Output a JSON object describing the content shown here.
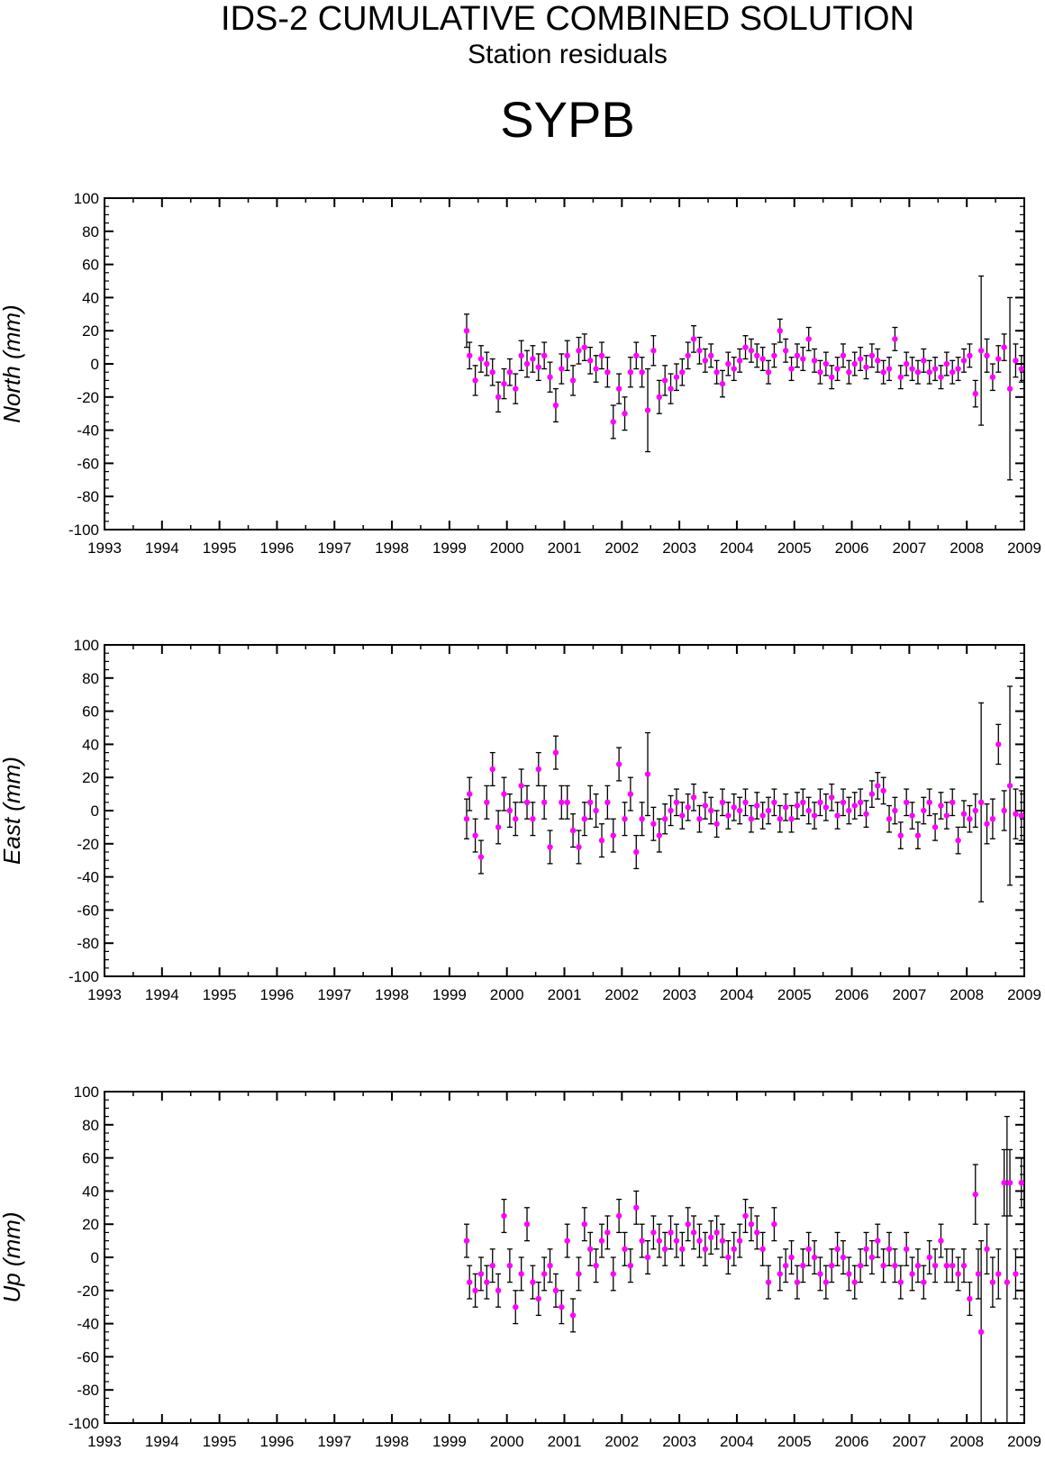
{
  "header": {
    "title": "IDS-2 CUMULATIVE COMBINED SOLUTION",
    "subtitle": "Station residuals",
    "station": "SYPB"
  },
  "colors": {
    "marker": "#ff00ff",
    "errorbar": "#000000",
    "axis": "#000000"
  },
  "chart_data": [
    {
      "type": "scatter",
      "ylabel": "North (mm)",
      "xlim": [
        1993,
        2009
      ],
      "ylim": [
        -100,
        100
      ],
      "xticks": [
        "1993",
        "1994",
        "1995",
        "1996",
        "1997",
        "1998",
        "1999",
        "2000",
        "2001",
        "2002",
        "2003",
        "2004",
        "2005",
        "2006",
        "2007",
        "2008",
        "2009"
      ],
      "yticks": [
        "100",
        "80",
        "60",
        "40",
        "20",
        "0",
        "-20",
        "-40",
        "-60",
        "-80",
        "-100"
      ],
      "grid": false,
      "series": [
        {
          "x": [
            1999.3,
            1999.35,
            1999.45,
            1999.55,
            1999.65,
            1999.75,
            1999.85,
            1999.95,
            2000.05,
            2000.15,
            2000.25,
            2000.35,
            2000.45,
            2000.55,
            2000.65,
            2000.75,
            2000.85,
            2000.95,
            2001.05,
            2001.15,
            2001.25,
            2001.35,
            2001.45,
            2001.55,
            2001.65,
            2001.75,
            2001.85,
            2001.95,
            2002.05,
            2002.15,
            2002.25,
            2002.35,
            2002.45,
            2002.55,
            2002.65,
            2002.75,
            2002.85,
            2002.95,
            2003.05,
            2003.15,
            2003.25,
            2003.35,
            2003.45,
            2003.55,
            2003.65,
            2003.75,
            2003.85,
            2003.95,
            2004.05,
            2004.15,
            2004.25,
            2004.35,
            2004.45,
            2004.55,
            2004.65,
            2004.75,
            2004.85,
            2004.95,
            2005.05,
            2005.15,
            2005.25,
            2005.35,
            2005.45,
            2005.55,
            2005.65,
            2005.75,
            2005.85,
            2005.95,
            2006.05,
            2006.15,
            2006.25,
            2006.35,
            2006.45,
            2006.55,
            2006.65,
            2006.75,
            2006.85,
            2006.95,
            2007.05,
            2007.15,
            2007.25,
            2007.35,
            2007.45,
            2007.55,
            2007.65,
            2007.75,
            2007.85,
            2007.95,
            2008.05,
            2008.15,
            2008.25,
            2008.35,
            2008.45,
            2008.55,
            2008.65,
            2008.75,
            2008.85,
            2008.95
          ],
          "y": [
            20,
            5,
            -10,
            3,
            0,
            -5,
            -20,
            -12,
            -5,
            -15,
            5,
            0,
            3,
            -2,
            5,
            -8,
            -25,
            -3,
            5,
            -10,
            8,
            10,
            2,
            -3,
            5,
            -5,
            -35,
            -15,
            -30,
            -5,
            5,
            -5,
            -28,
            8,
            -20,
            -10,
            -15,
            -8,
            -5,
            5,
            15,
            8,
            2,
            5,
            -5,
            -12,
            0,
            -3,
            2,
            10,
            8,
            5,
            3,
            -5,
            5,
            20,
            8,
            -3,
            5,
            3,
            15,
            2,
            -5,
            0,
            -8,
            -3,
            5,
            -5,
            0,
            3,
            -2,
            5,
            2,
            -5,
            -3,
            15,
            -8,
            0,
            -3,
            -5,
            2,
            -5,
            -3,
            -8,
            0,
            -5,
            -3,
            2,
            5,
            -18,
            8,
            5,
            -8,
            3,
            10,
            -15,
            2,
            -3
          ],
          "err": [
            10,
            8,
            9,
            8,
            7,
            8,
            9,
            9,
            8,
            9,
            9,
            8,
            8,
            8,
            8,
            9,
            10,
            9,
            9,
            9,
            8,
            8,
            8,
            8,
            8,
            9,
            10,
            9,
            10,
            9,
            8,
            9,
            25,
            9,
            10,
            9,
            9,
            8,
            8,
            8,
            8,
            8,
            7,
            7,
            7,
            8,
            7,
            7,
            7,
            7,
            7,
            7,
            7,
            7,
            7,
            7,
            7,
            7,
            7,
            7,
            7,
            7,
            7,
            7,
            7,
            7,
            7,
            7,
            7,
            7,
            7,
            7,
            7,
            7,
            7,
            7,
            7,
            7,
            7,
            7,
            7,
            7,
            7,
            7,
            7,
            7,
            7,
            7,
            7,
            8,
            45,
            10,
            8,
            8,
            8,
            55,
            10,
            8
          ]
        }
      ]
    },
    {
      "type": "scatter",
      "ylabel": "East (mm)",
      "xlim": [
        1993,
        2009
      ],
      "ylim": [
        -100,
        100
      ],
      "xticks": [
        "1993",
        "1994",
        "1995",
        "1996",
        "1997",
        "1998",
        "1999",
        "2000",
        "2001",
        "2002",
        "2003",
        "2004",
        "2005",
        "2006",
        "2007",
        "2008",
        "2009"
      ],
      "yticks": [
        "100",
        "80",
        "60",
        "40",
        "20",
        "0",
        "-20",
        "-40",
        "-60",
        "-80",
        "-100"
      ],
      "grid": false,
      "series": [
        {
          "x": [
            1999.3,
            1999.35,
            1999.45,
            1999.55,
            1999.65,
            1999.75,
            1999.85,
            1999.95,
            2000.05,
            2000.15,
            2000.25,
            2000.35,
            2000.45,
            2000.55,
            2000.65,
            2000.75,
            2000.85,
            2000.95,
            2001.05,
            2001.15,
            2001.25,
            2001.35,
            2001.45,
            2001.55,
            2001.65,
            2001.75,
            2001.85,
            2001.95,
            2002.05,
            2002.15,
            2002.25,
            2002.35,
            2002.45,
            2002.55,
            2002.65,
            2002.75,
            2002.85,
            2002.95,
            2003.05,
            2003.15,
            2003.25,
            2003.35,
            2003.45,
            2003.55,
            2003.65,
            2003.75,
            2003.85,
            2003.95,
            2004.05,
            2004.15,
            2004.25,
            2004.35,
            2004.45,
            2004.55,
            2004.65,
            2004.75,
            2004.85,
            2004.95,
            2005.05,
            2005.15,
            2005.25,
            2005.35,
            2005.45,
            2005.55,
            2005.65,
            2005.75,
            2005.85,
            2005.95,
            2006.05,
            2006.15,
            2006.25,
            2006.35,
            2006.45,
            2006.55,
            2006.65,
            2006.75,
            2006.85,
            2006.95,
            2007.05,
            2007.15,
            2007.25,
            2007.35,
            2007.45,
            2007.55,
            2007.65,
            2007.75,
            2007.85,
            2007.95,
            2008.05,
            2008.15,
            2008.25,
            2008.35,
            2008.45,
            2008.55,
            2008.65,
            2008.75,
            2008.85,
            2008.95
          ],
          "y": [
            -5,
            10,
            -15,
            -28,
            5,
            25,
            -10,
            10,
            0,
            -5,
            15,
            5,
            -5,
            25,
            5,
            -22,
            35,
            5,
            5,
            -12,
            -22,
            -5,
            5,
            0,
            -18,
            5,
            -15,
            28,
            -5,
            10,
            -25,
            -5,
            22,
            -8,
            -15,
            -5,
            0,
            5,
            -3,
            2,
            8,
            -5,
            3,
            0,
            -8,
            5,
            -3,
            2,
            0,
            5,
            -5,
            3,
            -3,
            0,
            5,
            -5,
            2,
            -5,
            3,
            5,
            0,
            -3,
            5,
            2,
            8,
            -3,
            5,
            0,
            3,
            5,
            -2,
            10,
            15,
            12,
            -5,
            0,
            -15,
            5,
            -3,
            -15,
            0,
            5,
            -10,
            3,
            -3,
            5,
            -18,
            -2,
            -5,
            0,
            5,
            -8,
            -5,
            40,
            0,
            15,
            -2,
            -3
          ],
          "err": [
            12,
            10,
            10,
            10,
            10,
            10,
            10,
            10,
            10,
            10,
            10,
            10,
            10,
            10,
            10,
            10,
            10,
            10,
            10,
            10,
            10,
            10,
            10,
            10,
            10,
            10,
            10,
            10,
            10,
            10,
            10,
            10,
            25,
            10,
            10,
            9,
            9,
            8,
            8,
            8,
            8,
            8,
            8,
            8,
            8,
            8,
            8,
            8,
            8,
            8,
            8,
            8,
            8,
            8,
            8,
            8,
            8,
            8,
            8,
            8,
            8,
            8,
            8,
            8,
            8,
            8,
            8,
            8,
            8,
            8,
            8,
            8,
            8,
            8,
            8,
            8,
            8,
            8,
            8,
            8,
            8,
            8,
            8,
            8,
            8,
            8,
            8,
            8,
            8,
            10,
            60,
            12,
            12,
            12,
            12,
            60,
            15,
            15
          ]
        }
      ]
    },
    {
      "type": "scatter",
      "ylabel": "Up (mm)",
      "xlim": [
        1993,
        2009
      ],
      "ylim": [
        -100,
        100
      ],
      "xticks": [
        "1993",
        "1994",
        "1995",
        "1996",
        "1997",
        "1998",
        "1999",
        "2000",
        "2001",
        "2002",
        "2003",
        "2004",
        "2005",
        "2006",
        "2007",
        "2008",
        "2009"
      ],
      "yticks": [
        "100",
        "80",
        "60",
        "40",
        "20",
        "0",
        "-20",
        "-40",
        "-60",
        "-80",
        "-100"
      ],
      "grid": false,
      "series": [
        {
          "x": [
            1999.3,
            1999.35,
            1999.45,
            1999.55,
            1999.65,
            1999.75,
            1999.85,
            1999.95,
            2000.05,
            2000.15,
            2000.25,
            2000.35,
            2000.45,
            2000.55,
            2000.65,
            2000.75,
            2000.85,
            2000.95,
            2001.05,
            2001.15,
            2001.25,
            2001.35,
            2001.45,
            2001.55,
            2001.65,
            2001.75,
            2001.85,
            2001.95,
            2002.05,
            2002.15,
            2002.25,
            2002.35,
            2002.45,
            2002.55,
            2002.65,
            2002.75,
            2002.85,
            2002.95,
            2003.05,
            2003.15,
            2003.25,
            2003.35,
            2003.45,
            2003.55,
            2003.65,
            2003.75,
            2003.85,
            2003.95,
            2004.05,
            2004.15,
            2004.25,
            2004.35,
            2004.45,
            2004.55,
            2004.65,
            2004.75,
            2004.85,
            2004.95,
            2005.05,
            2005.15,
            2005.25,
            2005.35,
            2005.45,
            2005.55,
            2005.65,
            2005.75,
            2005.85,
            2005.95,
            2006.05,
            2006.15,
            2006.25,
            2006.35,
            2006.45,
            2006.55,
            2006.65,
            2006.75,
            2006.85,
            2006.95,
            2007.05,
            2007.15,
            2007.25,
            2007.35,
            2007.45,
            2007.55,
            2007.65,
            2007.75,
            2007.85,
            2007.95,
            2008.05,
            2008.15,
            2008.2,
            2008.25,
            2008.35,
            2008.45,
            2008.55,
            2008.65,
            2008.7,
            2008.75,
            2008.85,
            2008.95
          ],
          "y": [
            10,
            -15,
            -20,
            -10,
            -15,
            -5,
            -20,
            25,
            -5,
            -30,
            -10,
            20,
            -15,
            -25,
            -10,
            -5,
            -20,
            -30,
            10,
            -35,
            -10,
            20,
            5,
            -5,
            10,
            15,
            -10,
            25,
            5,
            -5,
            30,
            10,
            0,
            15,
            10,
            5,
            15,
            10,
            5,
            20,
            15,
            10,
            5,
            12,
            15,
            10,
            0,
            5,
            10,
            25,
            20,
            15,
            5,
            -15,
            20,
            -10,
            -5,
            0,
            -15,
            -5,
            5,
            0,
            -10,
            -15,
            -5,
            5,
            0,
            -10,
            -15,
            -5,
            5,
            0,
            10,
            -5,
            5,
            -5,
            -15,
            5,
            -10,
            -5,
            -15,
            0,
            -5,
            10,
            -5,
            -5,
            -10,
            -5,
            -25,
            38,
            -10,
            -45,
            5,
            -15,
            -10,
            45,
            -15,
            45,
            -10,
            45
          ],
          "err": [
            10,
            10,
            10,
            10,
            10,
            10,
            10,
            10,
            10,
            10,
            10,
            10,
            10,
            10,
            10,
            10,
            10,
            10,
            10,
            10,
            10,
            10,
            10,
            10,
            10,
            10,
            10,
            10,
            10,
            10,
            10,
            10,
            10,
            10,
            10,
            10,
            10,
            10,
            10,
            10,
            10,
            10,
            10,
            10,
            10,
            10,
            10,
            10,
            10,
            10,
            10,
            10,
            10,
            10,
            10,
            10,
            10,
            10,
            10,
            10,
            10,
            10,
            10,
            10,
            10,
            10,
            10,
            10,
            10,
            10,
            10,
            10,
            10,
            10,
            10,
            10,
            10,
            10,
            10,
            10,
            10,
            10,
            10,
            10,
            10,
            10,
            10,
            10,
            10,
            18,
            15,
            55,
            15,
            15,
            15,
            20,
            100,
            20,
            15,
            15
          ]
        }
      ]
    }
  ]
}
